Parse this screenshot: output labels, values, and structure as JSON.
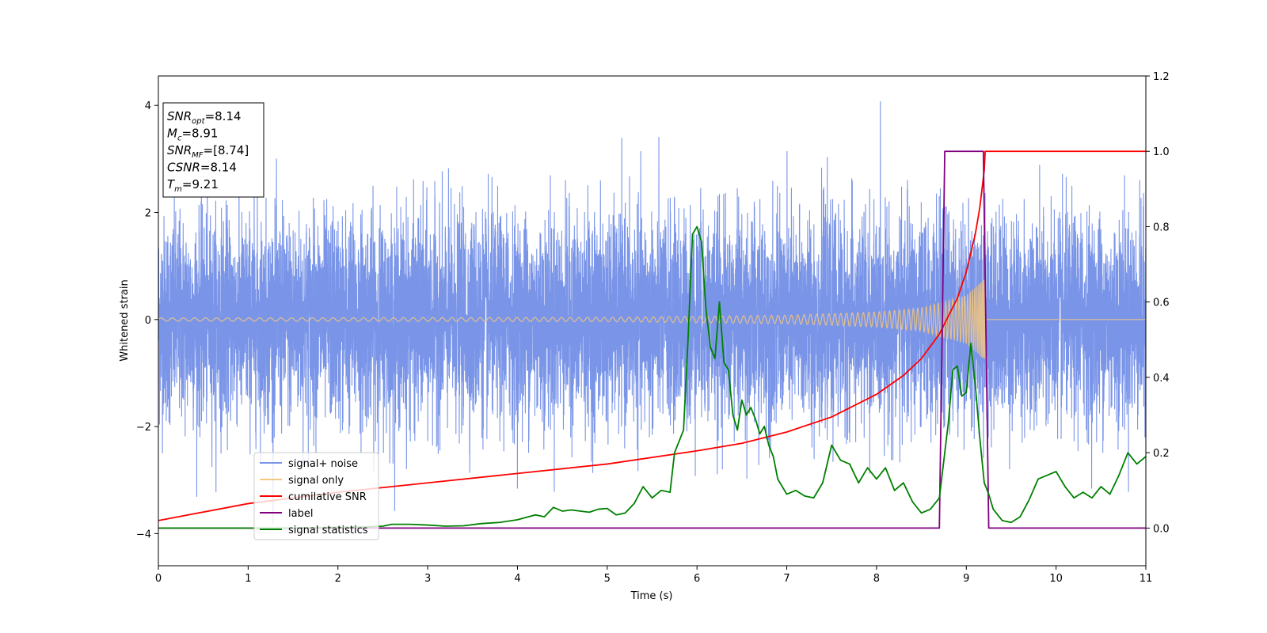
{
  "chart_data": {
    "type": "line",
    "xlabel": "Time (s)",
    "ylabel": "Whitened strain",
    "xlim": [
      0,
      11
    ],
    "ylim": [
      -4.6,
      4.55
    ],
    "y2lim": [
      -0.1,
      1.2
    ],
    "x_ticks": [
      "0",
      "1",
      "2",
      "3",
      "4",
      "5",
      "6",
      "7",
      "8",
      "9",
      "10",
      "11"
    ],
    "y_ticks": [
      "4",
      "2",
      "0",
      "−2",
      "−4"
    ],
    "y2_ticks": [
      "1.2",
      "1.0",
      "0.8",
      "0.6",
      "0.4",
      "0.2",
      "0.0"
    ],
    "grid": false,
    "legend_position": "lower-left",
    "annotation": [
      {
        "base": "SNR",
        "sub": "opt",
        "value": "=8.14"
      },
      {
        "base": "M",
        "sub": "c",
        "value": "=8.91"
      },
      {
        "base": "SNR",
        "sub": "MF",
        "value": "=[8.74]"
      },
      {
        "base": "CSNR",
        "sub": "",
        "value": "=8.14"
      },
      {
        "base": "T",
        "sub": "m",
        "value": "=9.21"
      }
    ],
    "series": [
      {
        "name": "signal+ noise",
        "axis": "left",
        "color": "#7a95e8",
        "kind": "noise",
        "std": 0.95,
        "approx_range": [
          -4.15,
          4.15
        ]
      },
      {
        "name": "signal only",
        "axis": "left",
        "color": "#f5c77e",
        "kind": "chirp",
        "amplitude_at_x": [
          [
            0,
            0.03
          ],
          [
            5,
            0.04
          ],
          [
            7,
            0.08
          ],
          [
            8,
            0.14
          ],
          [
            8.5,
            0.22
          ],
          [
            9,
            0.45
          ],
          [
            9.2,
            0.75
          ]
        ],
        "merger_time": 9.21
      },
      {
        "name": "cumilative SNR",
        "axis": "right",
        "color": "#ff0000",
        "x": [
          0,
          1,
          2,
          3,
          4,
          5,
          6,
          6.5,
          7,
          7.5,
          8,
          8.3,
          8.5,
          8.7,
          8.9,
          9.0,
          9.1,
          9.15,
          9.2,
          9.21,
          11
        ],
        "y": [
          0.02,
          0.065,
          0.095,
          0.12,
          0.145,
          0.17,
          0.205,
          0.225,
          0.255,
          0.295,
          0.355,
          0.405,
          0.45,
          0.515,
          0.61,
          0.68,
          0.78,
          0.85,
          0.95,
          1.0,
          1.0
        ]
      },
      {
        "name": "label",
        "axis": "right",
        "color": "#800080",
        "x": [
          0,
          8.7,
          8.76,
          9.19,
          9.25,
          11
        ],
        "y": [
          0,
          0,
          1,
          1,
          0,
          0
        ]
      },
      {
        "name": "signal statistics",
        "axis": "right",
        "color": "#008000",
        "x": [
          0,
          0.5,
          1,
          1.5,
          2,
          2.3,
          2.5,
          2.6,
          2.8,
          3,
          3.2,
          3.4,
          3.6,
          3.8,
          4,
          4.2,
          4.3,
          4.4,
          4.5,
          4.6,
          4.8,
          4.9,
          5.0,
          5.1,
          5.2,
          5.3,
          5.4,
          5.5,
          5.6,
          5.7,
          5.75,
          5.85,
          5.9,
          5.95,
          6.0,
          6.05,
          6.1,
          6.15,
          6.2,
          6.25,
          6.3,
          6.35,
          6.4,
          6.45,
          6.5,
          6.55,
          6.6,
          6.65,
          6.7,
          6.75,
          6.8,
          6.85,
          6.9,
          7.0,
          7.1,
          7.2,
          7.3,
          7.4,
          7.5,
          7.6,
          7.7,
          7.8,
          7.9,
          8.0,
          8.1,
          8.2,
          8.3,
          8.4,
          8.5,
          8.6,
          8.7,
          8.8,
          8.85,
          8.9,
          8.95,
          9.0,
          9.05,
          9.1,
          9.15,
          9.2,
          9.25,
          9.3,
          9.4,
          9.5,
          9.6,
          9.7,
          9.8,
          9.9,
          10.0,
          10.1,
          10.2,
          10.3,
          10.4,
          10.5,
          10.6,
          10.7,
          10.8,
          10.9,
          11.0
        ],
        "y": [
          0.0,
          0.0,
          0.0,
          0.0,
          0.002,
          0.003,
          0.005,
          0.01,
          0.01,
          0.008,
          0.005,
          0.006,
          0.012,
          0.015,
          0.022,
          0.035,
          0.03,
          0.055,
          0.045,
          0.048,
          0.042,
          0.05,
          0.052,
          0.035,
          0.04,
          0.065,
          0.11,
          0.08,
          0.1,
          0.095,
          0.2,
          0.26,
          0.5,
          0.78,
          0.8,
          0.76,
          0.58,
          0.48,
          0.45,
          0.6,
          0.44,
          0.42,
          0.3,
          0.26,
          0.34,
          0.3,
          0.32,
          0.29,
          0.25,
          0.27,
          0.22,
          0.19,
          0.13,
          0.09,
          0.1,
          0.085,
          0.08,
          0.12,
          0.22,
          0.18,
          0.17,
          0.12,
          0.16,
          0.13,
          0.16,
          0.1,
          0.12,
          0.07,
          0.04,
          0.05,
          0.08,
          0.28,
          0.42,
          0.43,
          0.35,
          0.36,
          0.49,
          0.38,
          0.24,
          0.12,
          0.09,
          0.05,
          0.02,
          0.015,
          0.03,
          0.075,
          0.13,
          0.14,
          0.15,
          0.11,
          0.08,
          0.095,
          0.08,
          0.11,
          0.09,
          0.14,
          0.2,
          0.17,
          0.19
        ]
      }
    ]
  }
}
